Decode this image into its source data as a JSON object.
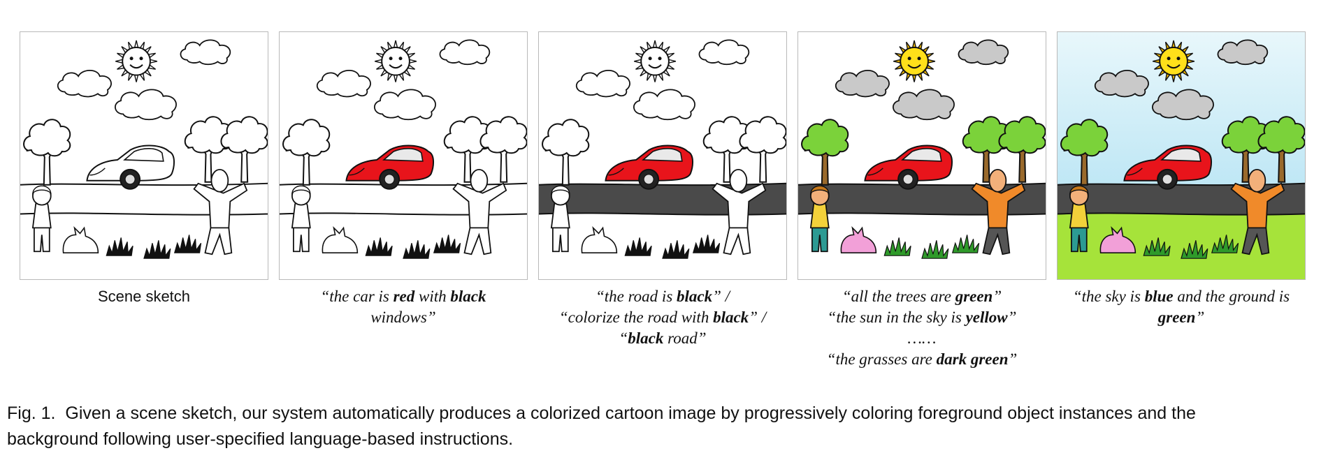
{
  "figure": {
    "panels": [
      {
        "id": "sketch",
        "caption": [
          "Scene sketch"
        ]
      },
      {
        "id": "car",
        "caption_lines": [
          {
            "parts": [
              {
                "t": "“the car is ",
                "b": false
              },
              {
                "t": "red",
                "b": true
              },
              {
                "t": " with ",
                "b": false
              },
              {
                "t": "black",
                "b": true
              }
            ]
          },
          {
            "parts": [
              {
                "t": "windows”",
                "b": false
              }
            ]
          }
        ]
      },
      {
        "id": "road",
        "caption_lines": [
          {
            "parts": [
              {
                "t": "“the road is ",
                "b": false
              },
              {
                "t": "black",
                "b": true
              },
              {
                "t": "” /",
                "b": false
              }
            ]
          },
          {
            "parts": [
              {
                "t": "“colorize the road with ",
                "b": false
              },
              {
                "t": "black",
                "b": true
              },
              {
                "t": "” /",
                "b": false
              }
            ]
          },
          {
            "parts": [
              {
                "t": "“",
                "b": false
              },
              {
                "t": "black",
                "b": true
              },
              {
                "t": " road”",
                "b": false
              }
            ]
          }
        ]
      },
      {
        "id": "foreground",
        "caption_lines": [
          {
            "parts": [
              {
                "t": "“all the trees are ",
                "b": false
              },
              {
                "t": "green",
                "b": true
              },
              {
                "t": "”",
                "b": false
              }
            ]
          },
          {
            "parts": [
              {
                "t": "“the sun in the sky is ",
                "b": false
              },
              {
                "t": "yellow",
                "b": true
              },
              {
                "t": "”",
                "b": false
              }
            ]
          },
          {
            "parts": [
              {
                "t": "……",
                "b": false
              }
            ]
          },
          {
            "parts": [
              {
                "t": "“the grasses are ",
                "b": false
              },
              {
                "t": "dark green",
                "b": true
              },
              {
                "t": "”",
                "b": false
              }
            ]
          }
        ]
      },
      {
        "id": "background",
        "caption_lines": [
          {
            "parts": [
              {
                "t": "“the sky is ",
                "b": false
              },
              {
                "t": "blue",
                "b": true
              },
              {
                "t": " and the ground is",
                "b": false
              }
            ]
          },
          {
            "parts": [
              {
                "t": "green",
                "b": true
              },
              {
                "t": "”",
                "b": false
              }
            ]
          }
        ]
      }
    ],
    "caption_label": "Fig. 1.",
    "caption_text_1": "Given a scene sketch, our system automatically produces a colorized cartoon image by progressively coloring foreground object instances and the",
    "caption_text_2": "background following user-specified language-based instructions."
  },
  "colors": {
    "car": "#e8141b",
    "road": "#4a4a4a",
    "tree": "#7bd23a",
    "trunk": "#9a6a2c",
    "sun": "#ffe01a",
    "cloud": "#c9c9c9",
    "sky": "#bfe7f5",
    "ground": "#a6e33a",
    "grass": "#2f9a2a",
    "cat": "#f2a0d8",
    "boy_shirt": "#f3d13a",
    "boy_pants": "#2c9a93",
    "man_shirt": "#f08a2a",
    "man_pants": "#555555",
    "skin": "#f2b07a"
  }
}
